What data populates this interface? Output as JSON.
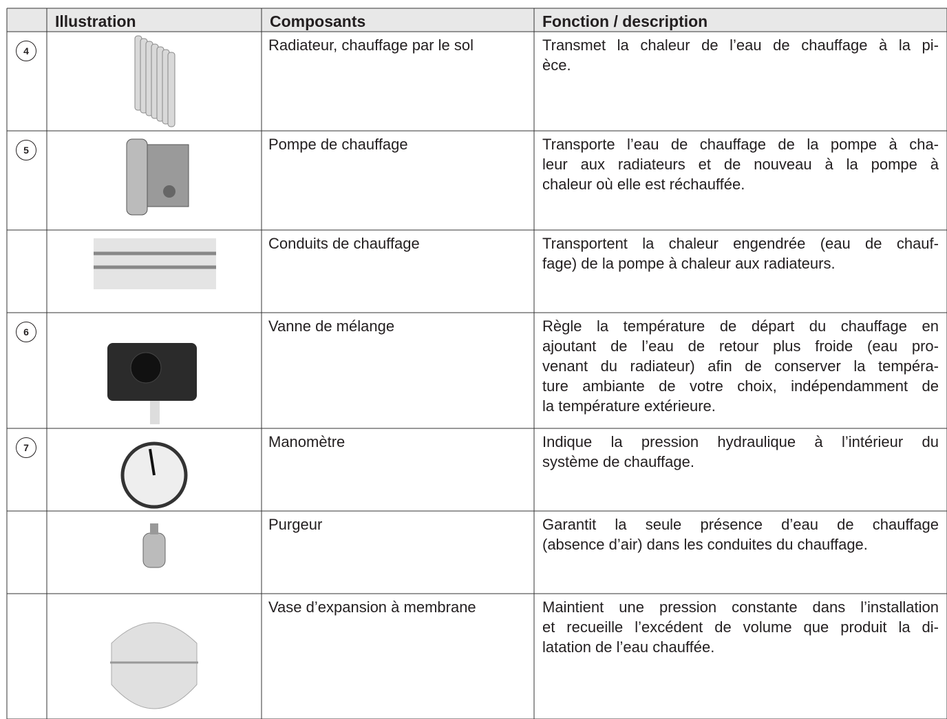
{
  "table": {
    "header": [
      "Illustration",
      "Composants",
      "Fonction / description"
    ],
    "rows": [
      {
        "number": "4",
        "component": "Radiateur, chauffage par le sol",
        "description": [
          "Transmet la chaleur de l’eau de chauffage à la pi-",
          "èce."
        ]
      },
      {
        "number": "5",
        "component": "Pompe de chauffage",
        "description": [
          "Transporte l’eau de chauffage de la pompe à cha-",
          "leur aux radiateurs et de nouveau à la pompe à",
          "chaleur où elle est réchauffée."
        ]
      },
      {
        "component": "Conduits de chauffage",
        "description": [
          "Transportent la chaleur engendrée (eau de chauf-",
          "fage) de la pompe à chaleur aux radiateurs."
        ]
      },
      {
        "number": "6",
        "component": "Vanne de mélange",
        "description": [
          "Règle la température de départ du chauffage en",
          "ajoutant de l’eau de retour plus froide (eau pro-",
          "venant du radiateur) afin de conserver la tempéra-",
          "ture ambiante de votre choix, indépendamment de",
          "la température extérieure."
        ]
      },
      {
        "number": "7",
        "component": "Manomètre",
        "description": [
          "Indique la pression hydraulique à l’intérieur du",
          "système de chauffage."
        ]
      },
      {
        "component": "Purgeur",
        "description": [
          "Garantit la seule présence d’eau de chauffage",
          "(absence d’air) dans les conduites du chauffage."
        ]
      },
      {
        "component": "Vase d’expansion à membrane",
        "description": [
          "Maintient une pression constante dans l’installation",
          "et recueille l’excédent de volume que produit la di-",
          "latation de l’eau chauffée."
        ]
      }
    ]
  }
}
